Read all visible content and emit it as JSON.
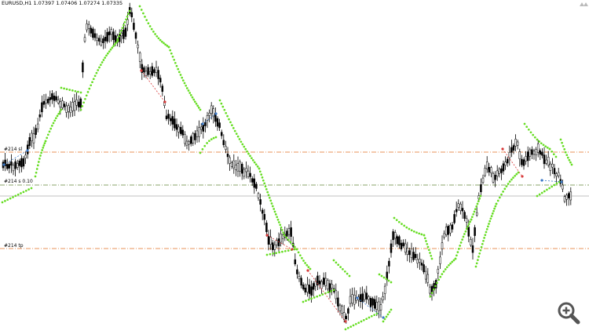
{
  "header": {
    "symbol_timeframe": "EURUSD,H1",
    "prices": "1.07397 1.07406 1.07274 1.07335"
  },
  "levels": [
    {
      "label": "#214 sl",
      "style": "dash-dot",
      "color": "#e8935a"
    },
    {
      "label": "#214 s 0.10",
      "style": "dash-dot",
      "color": "#8aa36a"
    },
    {
      "label": "#214 tp",
      "style": "dash-dot",
      "color": "#e8935a"
    }
  ],
  "colors": {
    "background": "#ffffff",
    "candles": "#000000",
    "sar_dots": "#66dd22",
    "order_levels": "#e8935a",
    "current_price_line": "#c0c0c0",
    "trade_history_blue": "#3a78c8",
    "trade_history_red": "#d83a3a"
  },
  "icons": {
    "zoom": "zoom-in-icon",
    "corner": "one-click-trading-icon"
  }
}
